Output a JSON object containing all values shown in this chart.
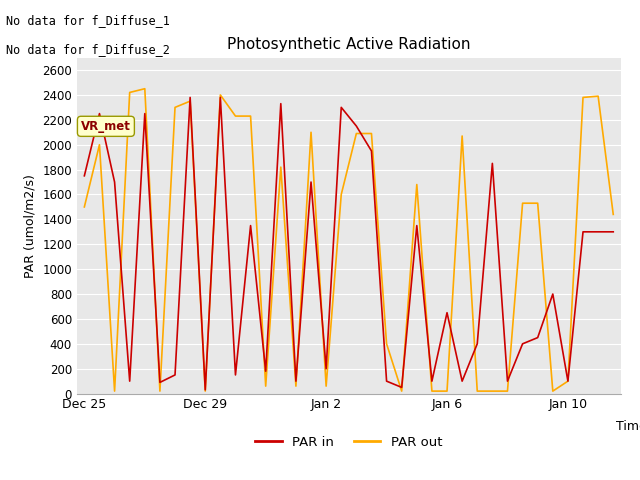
{
  "title": "Photosynthetic Active Radiation",
  "ylabel": "PAR (umol/m2/s)",
  "xlabel": "Time",
  "annotation_lines": [
    "No data for f_Diffuse_1",
    "No data for f_Diffuse_2"
  ],
  "legend_label": "VR_met",
  "fig_bg": "#ffffff",
  "ax_bg": "#e8e8e8",
  "ylim": [
    0,
    2700
  ],
  "yticks": [
    0,
    200,
    400,
    600,
    800,
    1000,
    1200,
    1400,
    1600,
    1800,
    2000,
    2200,
    2400,
    2600
  ],
  "x_tick_labels": [
    "Dec 25",
    "Dec 29",
    "Jan 2",
    "Jan 6",
    "Jan 10"
  ],
  "x_tick_positions": [
    0,
    8,
    16,
    24,
    32
  ],
  "par_in": [
    1750,
    2250,
    1700,
    100,
    2250,
    90,
    150,
    2380,
    30,
    2380,
    150,
    1350,
    180,
    2330,
    100,
    1700,
    200,
    2300,
    2150,
    1950,
    100,
    50,
    1350,
    100,
    650,
    100,
    400,
    1850,
    100,
    400,
    450,
    800,
    100,
    1300,
    1300,
    1300
  ],
  "par_out": [
    1500,
    2000,
    20,
    2420,
    2450,
    20,
    2300,
    2350,
    20,
    2400,
    2230,
    2230,
    60,
    1820,
    60,
    2100,
    60,
    1600,
    2090,
    2090,
    400,
    20,
    1680,
    20,
    20,
    2070,
    20,
    20,
    20,
    1530,
    1530,
    20,
    100,
    2380,
    2390,
    1440
  ],
  "n_points": 36,
  "par_in_color": "#cc0000",
  "par_out_color": "#ffaa00",
  "grid_color": "#ffffff",
  "spine_color": "#aaaaaa"
}
